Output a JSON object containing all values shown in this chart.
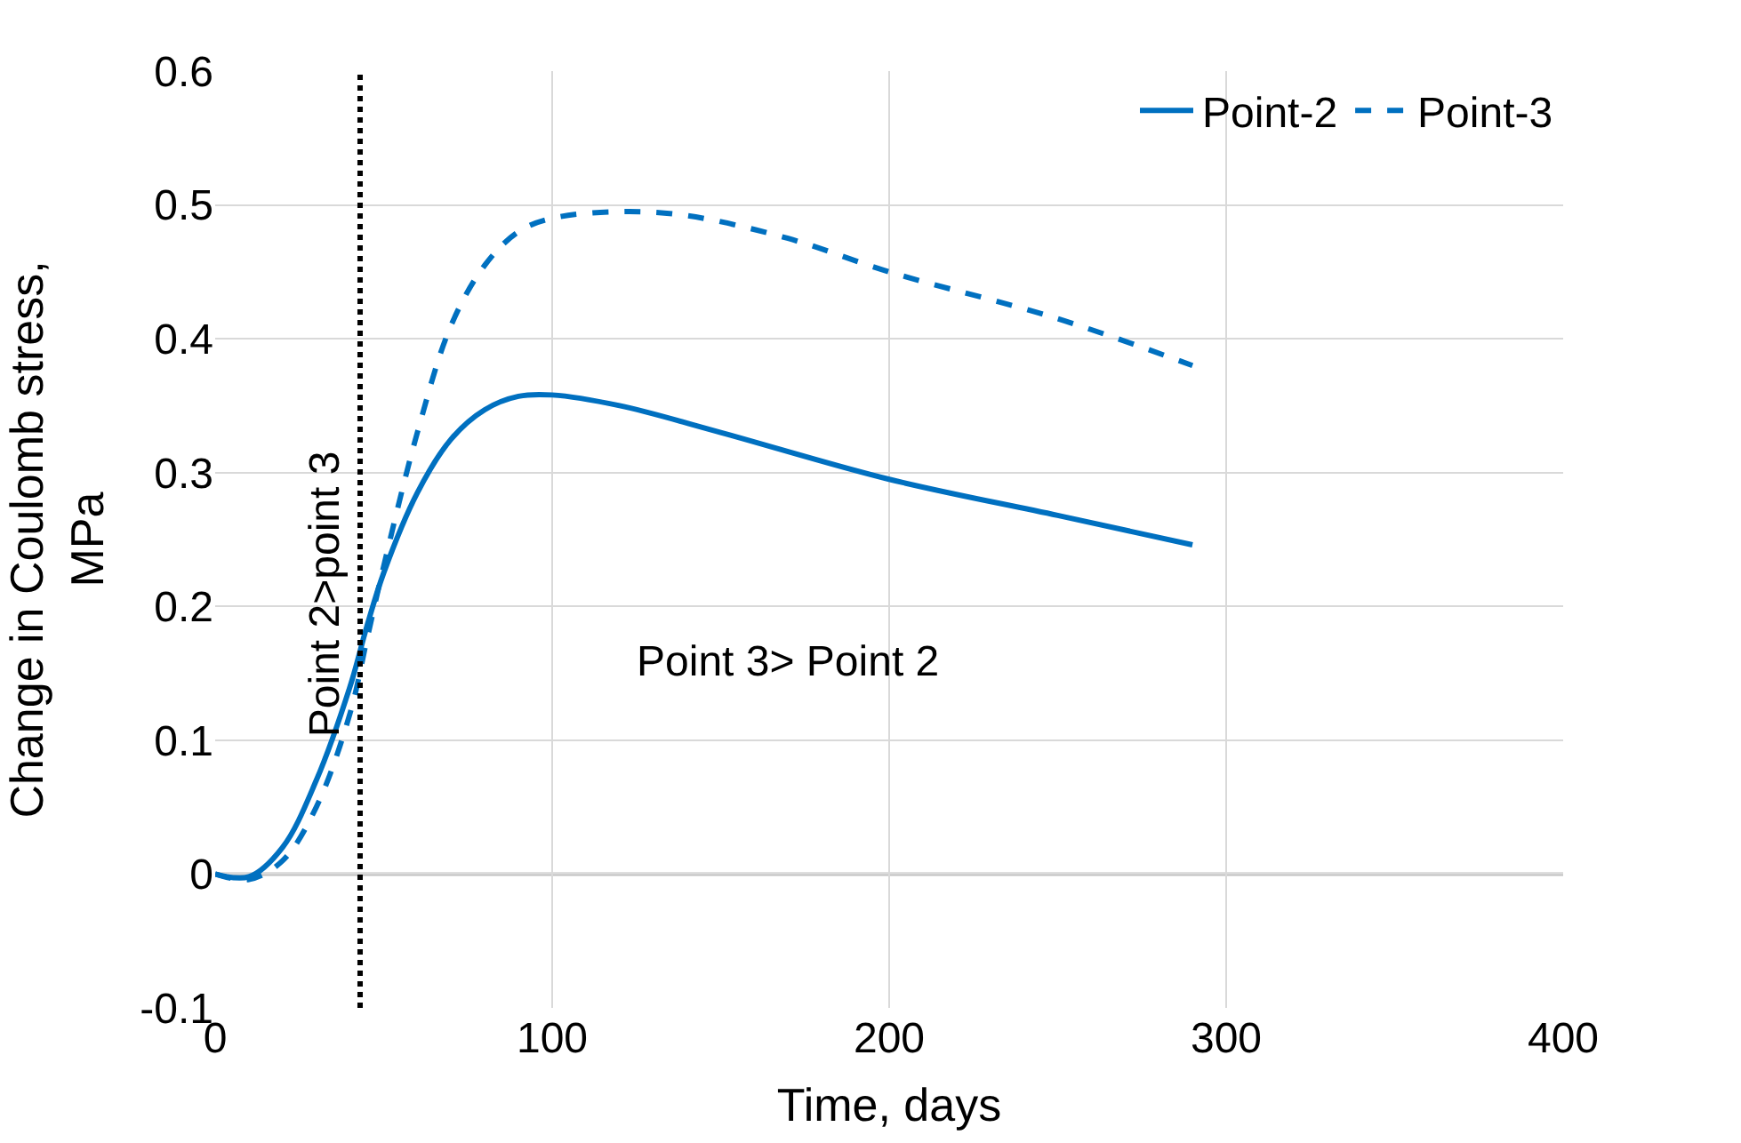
{
  "chart_data": {
    "type": "line",
    "xlabel": "Time, days",
    "ylabel": "Change in Coulomb stress, MPa",
    "xlim": [
      0,
      400
    ],
    "xticks": [
      0,
      100,
      200,
      300,
      400
    ],
    "ylim": [
      -0.1,
      0.6
    ],
    "yticks": [
      -0.1,
      0,
      0.1,
      0.2,
      0.3,
      0.4,
      0.5,
      0.6
    ],
    "grid": true,
    "legend": "top right",
    "marker": "none",
    "series": [
      {
        "name": "Point-2",
        "color": "#0070c0",
        "line_style": "solid",
        "x": [
          0,
          10,
          20,
          30,
          40,
          45,
          50,
          60,
          70,
          80,
          90,
          100,
          120,
          150,
          200,
          250,
          290
        ],
        "values": [
          0,
          -0.002,
          0.02,
          0.07,
          0.14,
          0.185,
          0.225,
          0.285,
          0.325,
          0.347,
          0.357,
          0.358,
          0.35,
          0.33,
          0.295,
          0.268,
          0.246
        ]
      },
      {
        "name": "Point-3",
        "color": "#0070c0",
        "line_style": "dashed",
        "x": [
          0,
          10,
          20,
          30,
          40,
          45,
          50,
          60,
          70,
          80,
          90,
          100,
          120,
          140,
          170,
          200,
          250,
          290
        ],
        "values": [
          0,
          -0.004,
          0.01,
          0.05,
          0.12,
          0.175,
          0.23,
          0.33,
          0.41,
          0.455,
          0.48,
          0.49,
          0.495,
          0.492,
          0.475,
          0.45,
          0.415,
          0.38
        ]
      }
    ],
    "ref_lines": [
      {
        "axis": "x",
        "value": 43,
        "label": "Point 2>point 3",
        "color": "#000000",
        "line_style": "dotted"
      }
    ],
    "annotations": [
      "Point 3> Point 2"
    ]
  }
}
